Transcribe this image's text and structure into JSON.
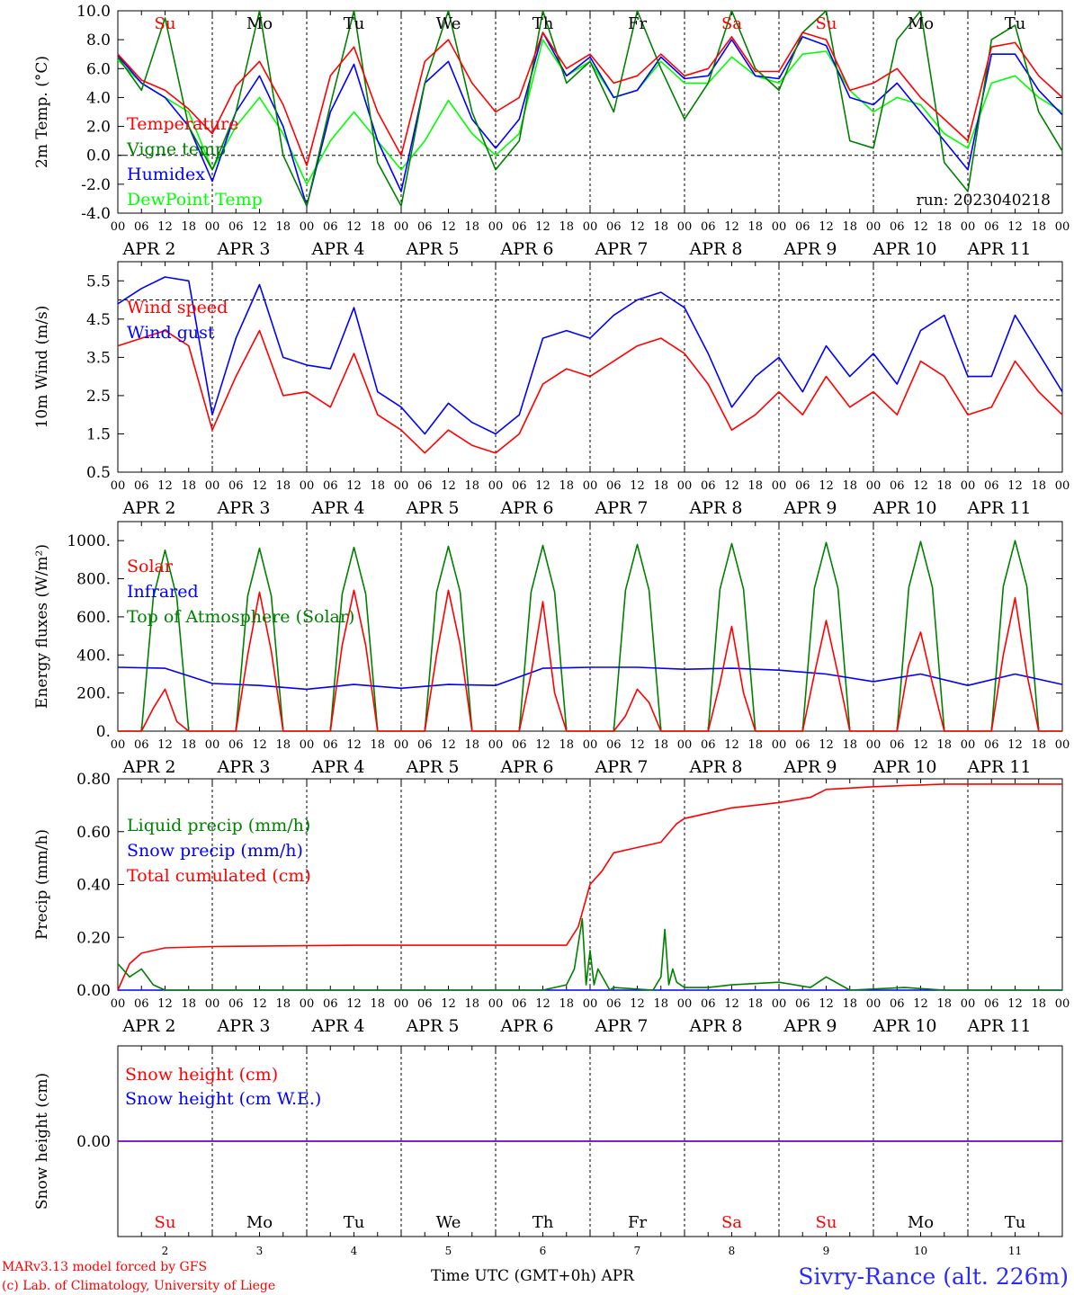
{
  "run_label": "run: 2023040218",
  "day_letters": [
    "Su",
    "Mo",
    "Tu",
    "We",
    "Th",
    "Fr",
    "Sa",
    "Su",
    "Mo",
    "Tu"
  ],
  "day_letter_colors": [
    "#ff0000",
    "#000000",
    "#000000",
    "#000000",
    "#000000",
    "#000000",
    "#ff0000",
    "#ff0000",
    "#000000",
    "#000000"
  ],
  "date_labels": [
    "APR  2",
    "APR  3",
    "APR  4",
    "APR  5",
    "APR  6",
    "APR  7",
    "APR  8",
    "APR  9",
    "APR 10",
    "APR 11"
  ],
  "day_numbers": [
    "2",
    "3",
    "4",
    "5",
    "6",
    "7",
    "8",
    "9",
    "10",
    "11"
  ],
  "hour_ticks": [
    "00",
    "06",
    "12",
    "18"
  ],
  "footer": {
    "model_line": "MARv3.13 model forced by GFS",
    "lab_line": "(c) Lab. of Climatology, University of Liege",
    "time_axis": "Time UTC (GMT+0h) APR",
    "station": "Sivry-Rance (alt. 226m)"
  },
  "chart_data": [
    {
      "type": "line",
      "panel": "temperature",
      "ylabel": "2m Temp. (°C)",
      "ylim": [
        -4,
        10
      ],
      "yticks": [
        "10.0",
        "8.0",
        "6.0",
        "4.0",
        "2.0",
        "0.0",
        "-2.0",
        "-4.0"
      ],
      "reference_line": 0,
      "x_unit": "hours since APR 2 00 UTC",
      "xlim": [
        0,
        240
      ],
      "series": [
        {
          "name": "Temperature",
          "color": "#ff0000",
          "x": [
            0,
            6,
            12,
            18,
            24,
            30,
            36,
            42,
            48,
            54,
            60,
            66,
            72,
            78,
            84,
            90,
            96,
            102,
            108,
            114,
            120,
            126,
            132,
            138,
            144,
            150,
            156,
            162,
            168,
            174,
            180,
            186,
            192,
            198,
            204,
            210,
            216,
            222,
            228,
            234,
            240
          ],
          "y": [
            7.0,
            5.2,
            4.5,
            3.2,
            1.5,
            4.8,
            6.5,
            3.5,
            -0.7,
            5.5,
            7.5,
            3.0,
            0.0,
            6.5,
            8.0,
            5.0,
            3.0,
            4.0,
            8.5,
            6.0,
            7.0,
            5.0,
            5.5,
            7.0,
            5.5,
            6.0,
            8.2,
            5.8,
            5.8,
            8.5,
            8.0,
            4.5,
            5.0,
            6.0,
            4.0,
            2.5,
            1.0,
            7.5,
            7.8,
            5.5,
            4.0
          ]
        },
        {
          "name": "Vigne temp",
          "color": "#008000",
          "x": [
            0,
            6,
            12,
            18,
            24,
            30,
            36,
            42,
            48,
            54,
            60,
            66,
            72,
            78,
            84,
            90,
            96,
            102,
            108,
            114,
            120,
            126,
            132,
            138,
            144,
            150,
            156,
            162,
            168,
            174,
            180,
            186,
            192,
            198,
            204,
            210,
            216,
            222,
            228,
            234,
            240
          ],
          "y": [
            6.8,
            4.5,
            9.5,
            2.0,
            -1.0,
            3.0,
            10.0,
            0.0,
            -3.5,
            3.5,
            10.0,
            -0.5,
            -3.5,
            5.0,
            10.0,
            3.0,
            -1.0,
            1.0,
            10.0,
            5.0,
            6.5,
            3.0,
            10.0,
            6.0,
            2.5,
            5.0,
            10.0,
            6.0,
            4.5,
            8.5,
            10.0,
            1.0,
            0.5,
            8.0,
            10.0,
            -0.5,
            -2.5,
            8.0,
            9.0,
            3.0,
            0.3
          ]
        },
        {
          "name": "Humidex",
          "color": "#0000ff",
          "x": [
            0,
            6,
            12,
            18,
            24,
            30,
            36,
            42,
            48,
            54,
            60,
            66,
            72,
            78,
            84,
            90,
            96,
            102,
            108,
            114,
            120,
            126,
            132,
            138,
            144,
            150,
            156,
            162,
            168,
            174,
            180,
            186,
            192,
            198,
            204,
            210,
            216,
            222,
            228,
            234,
            240
          ],
          "y": [
            6.9,
            5.0,
            4.0,
            2.0,
            -1.8,
            3.0,
            5.5,
            2.0,
            -3.5,
            3.0,
            6.3,
            1.0,
            -2.5,
            5.0,
            6.5,
            2.5,
            0.5,
            2.5,
            8.5,
            5.5,
            6.8,
            4.0,
            4.5,
            6.8,
            5.3,
            5.5,
            8.0,
            5.5,
            5.3,
            8.2,
            7.6,
            4.0,
            3.5,
            5.0,
            3.0,
            1.0,
            -1.0,
            7.0,
            7.0,
            4.5,
            2.8
          ]
        },
        {
          "name": "DewPoint Temp",
          "color": "#00ff00",
          "x": [
            0,
            6,
            12,
            18,
            24,
            30,
            36,
            42,
            48,
            54,
            60,
            66,
            72,
            78,
            84,
            90,
            96,
            102,
            108,
            114,
            120,
            126,
            132,
            138,
            144,
            150,
            156,
            162,
            168,
            174,
            180,
            186,
            192,
            198,
            204,
            210,
            216,
            222,
            228,
            234,
            240
          ],
          "y": [
            6.6,
            5.0,
            4.0,
            3.0,
            -1.0,
            2.0,
            4.0,
            1.5,
            -2.0,
            1.0,
            3.0,
            1.0,
            -1.0,
            1.0,
            3.8,
            1.5,
            0.0,
            1.5,
            8.0,
            5.5,
            6.5,
            4.0,
            4.5,
            6.5,
            5.0,
            5.0,
            6.8,
            5.5,
            5.0,
            7.0,
            7.2,
            4.5,
            3.0,
            4.0,
            3.5,
            1.5,
            0.5,
            5.0,
            5.5,
            4.0,
            3.0
          ]
        }
      ]
    },
    {
      "type": "line",
      "panel": "wind",
      "ylabel": "10m Wind (m/s)",
      "ylim": [
        0.5,
        6.0
      ],
      "yticks": [
        "5.5",
        "4.5",
        "3.5",
        "2.5",
        "1.5",
        "0.5"
      ],
      "reference_line": 5,
      "x_unit": "hours since APR 2 00 UTC",
      "xlim": [
        0,
        240
      ],
      "series": [
        {
          "name": "Wind speed",
          "color": "#ff0000",
          "x": [
            0,
            6,
            12,
            18,
            24,
            30,
            36,
            42,
            48,
            54,
            60,
            66,
            72,
            78,
            84,
            90,
            96,
            102,
            108,
            114,
            120,
            126,
            132,
            138,
            144,
            150,
            156,
            162,
            168,
            174,
            180,
            186,
            192,
            198,
            204,
            210,
            216,
            222,
            228,
            234,
            240
          ],
          "y": [
            3.8,
            4.0,
            4.2,
            3.8,
            1.6,
            3.0,
            4.2,
            2.5,
            2.6,
            2.2,
            3.6,
            2.0,
            1.6,
            1.0,
            1.6,
            1.2,
            1.0,
            1.5,
            2.8,
            3.2,
            3.0,
            3.4,
            3.8,
            4.0,
            3.6,
            2.8,
            1.6,
            2.0,
            2.6,
            2.0,
            3.0,
            2.2,
            2.6,
            2.0,
            3.4,
            3.0,
            2.0,
            2.2,
            3.4,
            2.6,
            2.0
          ]
        },
        {
          "name": "Wind gust",
          "color": "#0000ff",
          "x": [
            0,
            6,
            12,
            18,
            24,
            30,
            36,
            42,
            48,
            54,
            60,
            66,
            72,
            78,
            84,
            90,
            96,
            102,
            108,
            114,
            120,
            126,
            132,
            138,
            144,
            150,
            156,
            162,
            168,
            174,
            180,
            186,
            192,
            198,
            204,
            210,
            216,
            222,
            228,
            234,
            240
          ],
          "y": [
            4.9,
            5.3,
            5.6,
            5.5,
            2.0,
            4.0,
            5.4,
            3.5,
            3.3,
            3.2,
            4.8,
            2.6,
            2.2,
            1.5,
            2.3,
            1.8,
            1.5,
            2.0,
            4.0,
            4.2,
            4.0,
            4.6,
            5.0,
            5.2,
            4.8,
            3.6,
            2.2,
            3.0,
            3.5,
            2.6,
            3.8,
            3.0,
            3.6,
            2.8,
            4.2,
            4.6,
            3.0,
            3.0,
            4.6,
            3.6,
            2.6
          ]
        }
      ]
    },
    {
      "type": "line",
      "panel": "energy",
      "ylabel": "Energy fluxes (W/m²)",
      "ylim": [
        0,
        1100
      ],
      "yticks": [
        "1000.",
        "800.",
        "600.",
        "400.",
        "200.",
        "0."
      ],
      "x_unit": "hours since APR 2 00 UTC",
      "xlim": [
        0,
        240
      ],
      "series": [
        {
          "name": "Solar",
          "color": "#ff0000",
          "x": [
            0,
            6,
            9,
            12,
            15,
            18,
            24,
            30,
            33,
            36,
            39,
            42,
            48,
            54,
            57,
            60,
            63,
            66,
            72,
            78,
            81,
            84,
            87,
            90,
            96,
            102,
            105,
            108,
            111,
            114,
            120,
            126,
            129,
            132,
            135,
            138,
            144,
            150,
            153,
            156,
            159,
            162,
            168,
            174,
            177,
            180,
            183,
            186,
            192,
            198,
            201,
            204,
            207,
            210,
            216,
            222,
            225,
            228,
            231,
            234,
            240
          ],
          "y": [
            0,
            0,
            120,
            220,
            50,
            0,
            0,
            0,
            400,
            730,
            420,
            0,
            0,
            0,
            450,
            740,
            450,
            0,
            0,
            0,
            400,
            740,
            450,
            0,
            0,
            0,
            300,
            680,
            200,
            0,
            0,
            0,
            80,
            220,
            150,
            0,
            0,
            0,
            250,
            550,
            200,
            0,
            0,
            0,
            300,
            580,
            300,
            0,
            0,
            0,
            350,
            520,
            250,
            0,
            0,
            0,
            400,
            700,
            300,
            0,
            0
          ]
        },
        {
          "name": "Infrared",
          "color": "#0000ff",
          "x": [
            0,
            12,
            24,
            36,
            48,
            60,
            72,
            84,
            96,
            108,
            120,
            132,
            144,
            156,
            168,
            180,
            192,
            204,
            216,
            228,
            240
          ],
          "y": [
            335,
            330,
            250,
            240,
            220,
            245,
            225,
            245,
            240,
            330,
            335,
            335,
            325,
            330,
            320,
            300,
            260,
            300,
            240,
            300,
            245
          ]
        },
        {
          "name": "Top of Atmosphere (Solar)",
          "color": "#008000",
          "x": [
            0,
            6,
            9,
            12,
            15,
            18,
            24,
            30,
            33,
            36,
            39,
            42,
            48,
            54,
            57,
            60,
            63,
            66,
            72,
            78,
            81,
            84,
            87,
            90,
            96,
            102,
            105,
            108,
            111,
            114,
            120,
            126,
            129,
            132,
            135,
            138,
            144,
            150,
            153,
            156,
            159,
            162,
            168,
            174,
            177,
            180,
            183,
            186,
            192,
            198,
            201,
            204,
            207,
            210,
            216,
            222,
            225,
            228,
            231,
            234,
            240
          ],
          "y": [
            0,
            0,
            700,
            950,
            700,
            0,
            0,
            0,
            710,
            960,
            710,
            0,
            0,
            0,
            720,
            965,
            720,
            0,
            0,
            0,
            730,
            970,
            730,
            0,
            0,
            0,
            730,
            975,
            730,
            0,
            0,
            0,
            740,
            980,
            740,
            0,
            0,
            0,
            745,
            985,
            745,
            0,
            0,
            0,
            750,
            990,
            750,
            0,
            0,
            0,
            755,
            995,
            755,
            0,
            0,
            0,
            760,
            1000,
            760,
            0,
            0
          ]
        }
      ]
    },
    {
      "type": "line",
      "panel": "precip",
      "ylabel": "Precip (mm/h)",
      "ylim": [
        0,
        0.8
      ],
      "yticks": [
        "0.80",
        "0.60",
        "0.40",
        "0.20",
        "0.00"
      ],
      "x_unit": "hours since APR 2 00 UTC",
      "xlim": [
        0,
        240
      ],
      "series": [
        {
          "name": "Liquid precip (mm/h)",
          "color": "#008000",
          "x": [
            0,
            3,
            6,
            9,
            12,
            108,
            114,
            116,
            118,
            119,
            120,
            121,
            122,
            125,
            126,
            136,
            138,
            139,
            140,
            141,
            142,
            144,
            150,
            156,
            168,
            176,
            180,
            186,
            200,
            210,
            240
          ],
          "y": [
            0.1,
            0.05,
            0.08,
            0.02,
            0,
            0,
            0.02,
            0.08,
            0.27,
            0.02,
            0.15,
            0.02,
            0.08,
            0,
            0.01,
            0,
            0.05,
            0.23,
            0.02,
            0.08,
            0.03,
            0.01,
            0.01,
            0.02,
            0.03,
            0.01,
            0.05,
            0,
            0.01,
            0,
            0
          ]
        },
        {
          "name": "Snow precip (mm/h)",
          "color": "#0000ff",
          "x": [
            0,
            240
          ],
          "y": [
            0,
            0
          ]
        },
        {
          "name": "Total cumulated (cm)",
          "color": "#ff0000",
          "x": [
            0,
            3,
            6,
            12,
            24,
            60,
            114,
            117,
            120,
            123,
            126,
            132,
            138,
            142,
            144,
            150,
            156,
            162,
            168,
            176,
            180,
            192,
            210,
            240
          ],
          "y": [
            0,
            0.1,
            0.14,
            0.16,
            0.165,
            0.17,
            0.17,
            0.24,
            0.4,
            0.45,
            0.52,
            0.54,
            0.56,
            0.63,
            0.65,
            0.67,
            0.69,
            0.7,
            0.71,
            0.73,
            0.76,
            0.77,
            0.78,
            0.78
          ]
        }
      ]
    },
    {
      "type": "line",
      "panel": "snow",
      "ylabel": "Snow height (cm)",
      "ylim": [
        -1,
        1
      ],
      "yticks": [
        "0.00"
      ],
      "x_unit": "hours since APR 2 00 UTC",
      "xlim": [
        0,
        240
      ],
      "series": [
        {
          "name": "Snow height (cm)",
          "color": "#ff0000",
          "x": [
            0,
            240
          ],
          "y": [
            0,
            0
          ]
        },
        {
          "name": "Snow height (cm W.E.)",
          "color": "#0000ff",
          "x": [
            0,
            240
          ],
          "y": [
            0,
            0
          ]
        }
      ]
    }
  ]
}
